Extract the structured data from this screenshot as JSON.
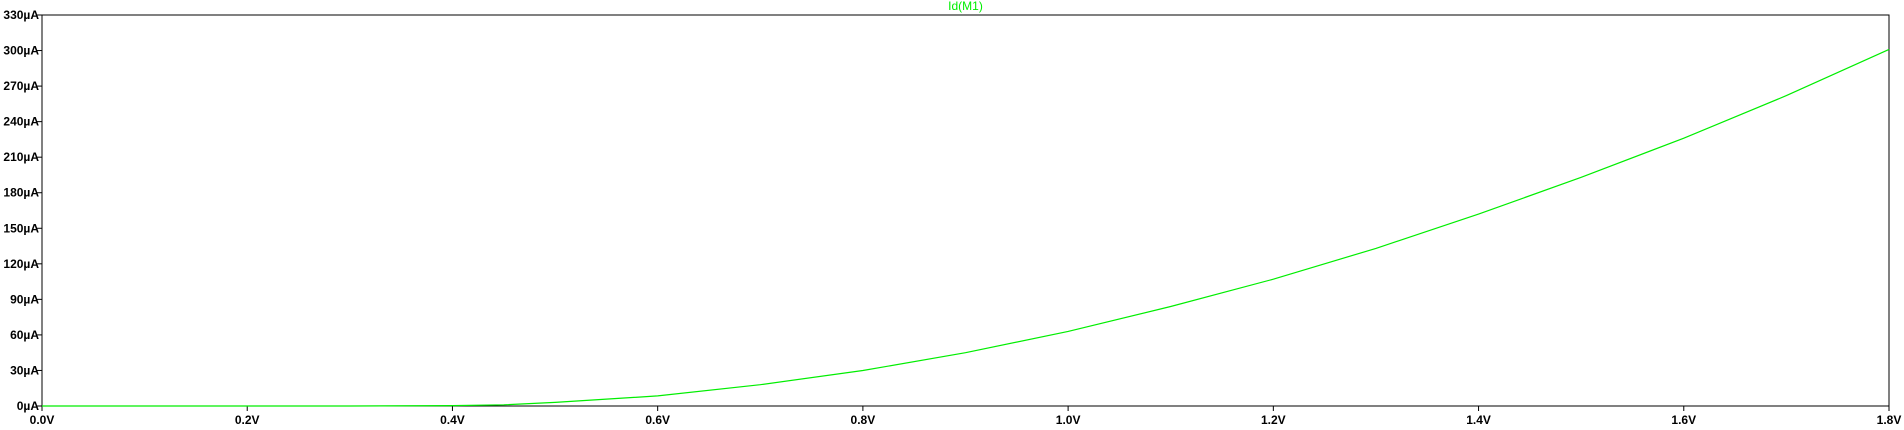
{
  "chart_data": {
    "type": "line",
    "title": "",
    "xlabel": "",
    "ylabel": "",
    "xlim": [
      0.0,
      1.8
    ],
    "ylim": [
      0,
      330
    ],
    "x_ticks": [
      0.0,
      0.2,
      0.4,
      0.6,
      0.8,
      1.0,
      1.2,
      1.4,
      1.6,
      1.8
    ],
    "x_tick_labels": [
      "0.0V",
      "0.2V",
      "0.4V",
      "0.6V",
      "0.8V",
      "1.0V",
      "1.2V",
      "1.4V",
      "1.6V",
      "1.8V"
    ],
    "y_ticks": [
      0,
      30,
      60,
      90,
      120,
      150,
      180,
      210,
      240,
      270,
      300,
      330
    ],
    "y_tick_labels": [
      "0µA",
      "30µA",
      "60µA",
      "90µA",
      "120µA",
      "150µA",
      "180µA",
      "210µA",
      "240µA",
      "270µA",
      "300µA",
      "330µA"
    ],
    "grid": false,
    "series": [
      {
        "name": "Id(M1)",
        "color": "#00ee00",
        "x": [
          0.0,
          0.1,
          0.2,
          0.3,
          0.4,
          0.45,
          0.5,
          0.6,
          0.7,
          0.8,
          0.9,
          1.0,
          1.1,
          1.2,
          1.3,
          1.4,
          1.5,
          1.6,
          1.7,
          1.8
        ],
        "y": [
          0,
          0,
          0,
          0,
          0.3,
          1,
          3,
          8.5,
          18,
          30,
          45,
          63,
          84,
          107,
          133,
          162,
          193,
          226,
          262,
          301
        ]
      }
    ]
  }
}
